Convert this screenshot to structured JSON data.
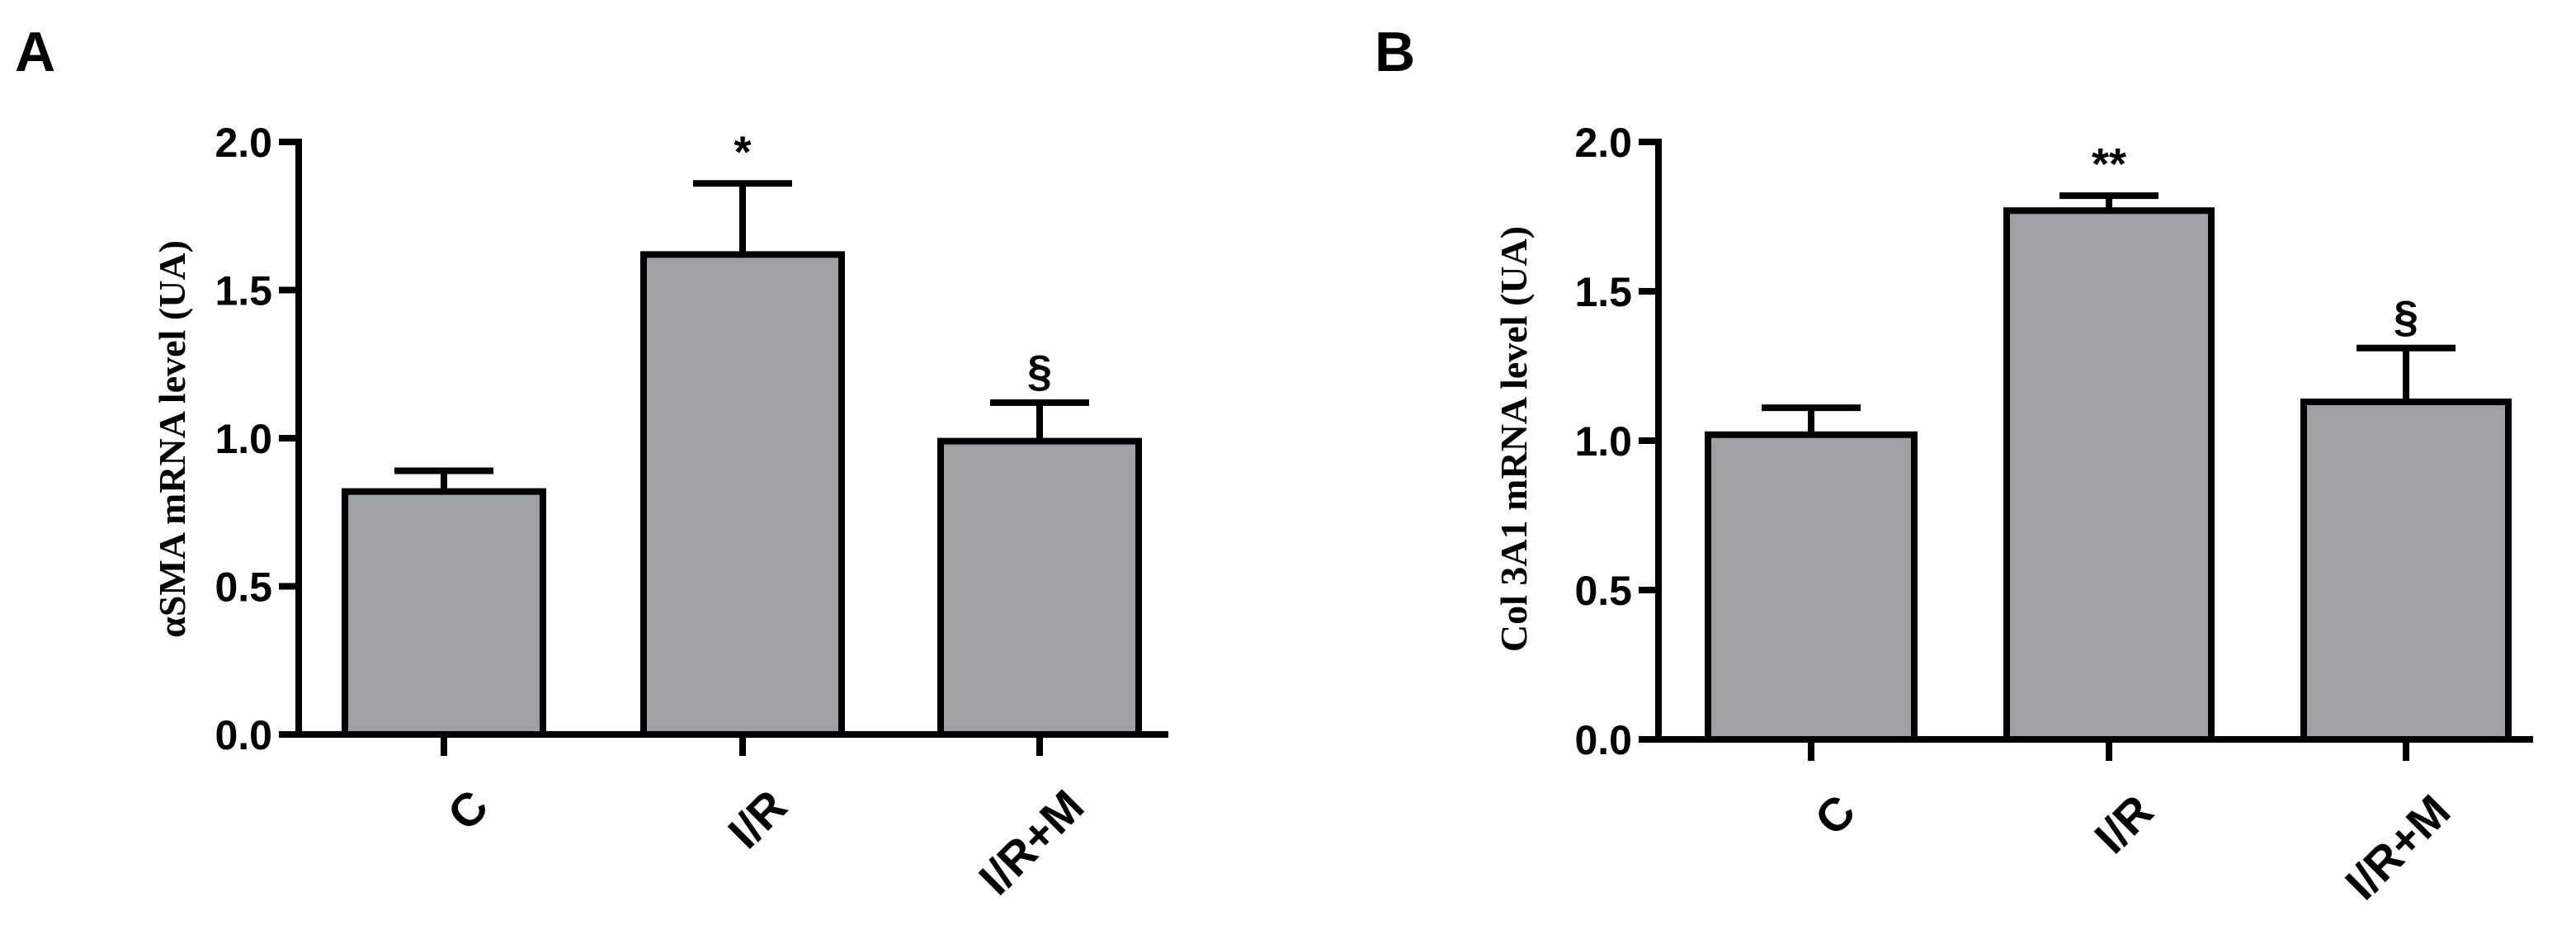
{
  "chart_data": [
    {
      "panel": "A",
      "type": "bar",
      "categories": [
        "C",
        "I/R",
        "I/R+M"
      ],
      "values": [
        0.82,
        1.62,
        0.99
      ],
      "errors": [
        0.07,
        0.24,
        0.13
      ],
      "annotations": [
        "",
        "*",
        "§"
      ],
      "ylabel": "αSMA mRNA level (UA)",
      "ylim": [
        0,
        2.0
      ],
      "yticks": [
        "0.0",
        "0.5",
        "1.0",
        "1.5",
        "2.0"
      ],
      "bar_color": "#a0a1a5",
      "grid": false
    },
    {
      "panel": "B",
      "type": "bar",
      "categories": [
        "C",
        "I/R",
        "I/R+M"
      ],
      "values": [
        1.02,
        1.77,
        1.13
      ],
      "errors": [
        0.09,
        0.05,
        0.18
      ],
      "annotations": [
        "",
        "**",
        "§"
      ],
      "ylabel": "Col 3A1 mRNA level (UA)",
      "ylim": [
        0,
        2.0
      ],
      "yticks": [
        "0.0",
        "0.5",
        "1.0",
        "1.5",
        "2.0"
      ],
      "bar_color": "#a0a1a5",
      "grid": false
    }
  ]
}
